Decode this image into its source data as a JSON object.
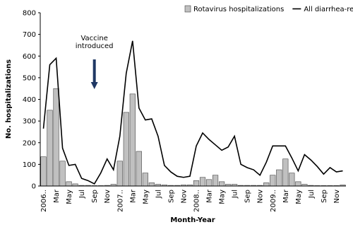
{
  "chart_data": {
    "type": "bar_line",
    "xlabel": "Month-Year",
    "ylabel": "No. hospitalizations",
    "annotation": [
      "Vaccine",
      "introduced"
    ],
    "categories": [
      "2006..",
      null,
      "Mar",
      null,
      "May",
      null,
      "Jul",
      null,
      "Sep",
      null,
      "Nov",
      null,
      "2007..",
      null,
      "Mar",
      null,
      "May",
      null,
      "Jul",
      null,
      "Sep",
      null,
      "Nov",
      null,
      "2008..",
      null,
      "Mar",
      null,
      "May",
      null,
      "Jul",
      null,
      "Sep",
      null,
      "Nov",
      null,
      "2009..",
      null,
      "Mar",
      null,
      "May",
      null,
      "Jul",
      null,
      "Sep",
      null,
      "Nov",
      null
    ],
    "series": [
      {
        "name": "Rotavirus hospitalizations",
        "kind": "bar",
        "color": "#c0c0c0",
        "values": [
          135,
          350,
          450,
          115,
          20,
          10,
          3,
          3,
          2,
          2,
          3,
          8,
          115,
          340,
          425,
          160,
          60,
          15,
          8,
          5,
          3,
          3,
          5,
          5,
          25,
          40,
          30,
          50,
          20,
          8,
          8,
          3,
          3,
          3,
          3,
          15,
          50,
          75,
          125,
          60,
          20,
          8,
          3,
          2,
          2,
          2,
          2,
          5
        ]
      },
      {
        "name": "All diarrhea-related hospitalizations",
        "kind": "line",
        "color": "#000000",
        "values": [
          265,
          560,
          590,
          175,
          95,
          100,
          35,
          25,
          10,
          60,
          125,
          75,
          230,
          520,
          670,
          360,
          305,
          310,
          230,
          95,
          65,
          45,
          40,
          45,
          185,
          245,
          215,
          190,
          165,
          180,
          230,
          100,
          85,
          75,
          50,
          110,
          185,
          185,
          185,
          130,
          70,
          145,
          120,
          90,
          55,
          85,
          65,
          70
        ]
      }
    ],
    "ylim": [
      0,
      800
    ],
    "yticks": [
      0,
      100,
      200,
      300,
      400,
      500,
      600,
      700,
      800
    ],
    "grid": false
  }
}
